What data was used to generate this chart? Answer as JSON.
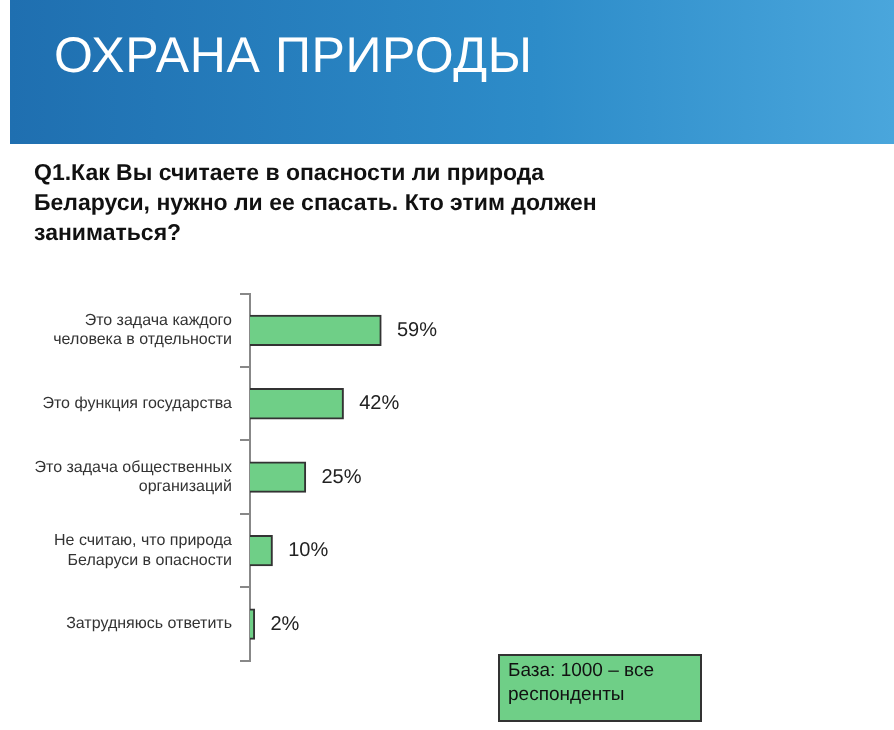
{
  "chart_data": {
    "type": "bar",
    "orientation": "horizontal",
    "title": "ОХРАНА ПРИРОДЫ",
    "subtitle": "Q1.Как Вы считаете в опасности ли природа Беларуси, нужно ли ее спасать. Кто этим должен заниматься?",
    "categories": [
      "Это задача каждого человека в отдельности",
      "Это функция государства",
      "Это задача общественных организаций",
      "Не считаю, что природа Беларуси в опасности",
      "Затрудняюсь ответить"
    ],
    "values": [
      59,
      42,
      25,
      10,
      2
    ],
    "color": "#6fcf87",
    "value_labels": [
      "59%",
      "42%",
      "25%",
      "10%",
      "2%"
    ],
    "annotations": [
      "База: 1000 – все респонденты"
    ]
  }
}
